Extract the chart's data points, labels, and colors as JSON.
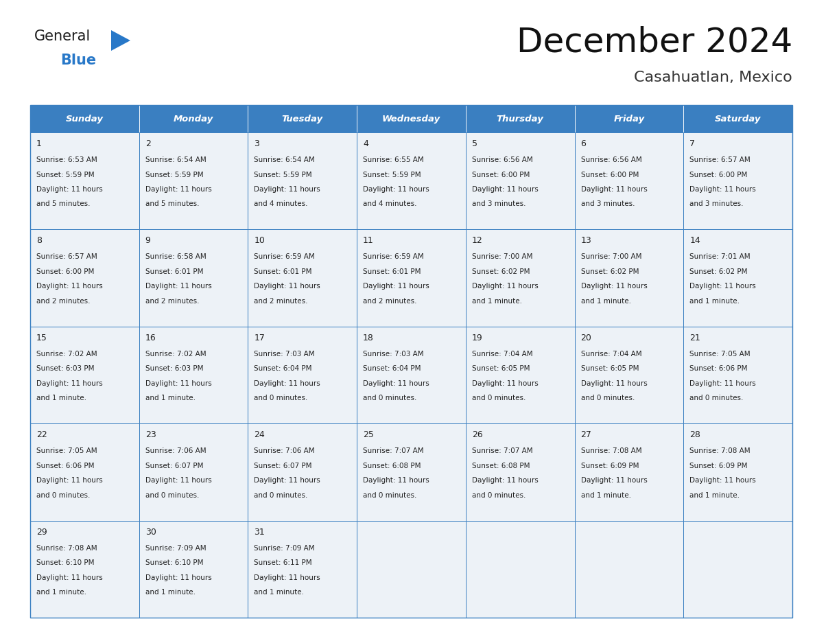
{
  "title": "December 2024",
  "subtitle": "Casahuatlan, Mexico",
  "header_bg_color": "#3a7fc1",
  "header_text_color": "#ffffff",
  "cell_bg_color": "#edf2f7",
  "border_color": "#3a7fc1",
  "text_color": "#222222",
  "days_of_week": [
    "Sunday",
    "Monday",
    "Tuesday",
    "Wednesday",
    "Thursday",
    "Friday",
    "Saturday"
  ],
  "calendar_data": [
    [
      {
        "day": "1",
        "sunrise": "6:53 AM",
        "sunset": "5:59 PM",
        "dl1": "Daylight: 11 hours",
        "dl2": "and 5 minutes."
      },
      {
        "day": "2",
        "sunrise": "6:54 AM",
        "sunset": "5:59 PM",
        "dl1": "Daylight: 11 hours",
        "dl2": "and 5 minutes."
      },
      {
        "day": "3",
        "sunrise": "6:54 AM",
        "sunset": "5:59 PM",
        "dl1": "Daylight: 11 hours",
        "dl2": "and 4 minutes."
      },
      {
        "day": "4",
        "sunrise": "6:55 AM",
        "sunset": "5:59 PM",
        "dl1": "Daylight: 11 hours",
        "dl2": "and 4 minutes."
      },
      {
        "day": "5",
        "sunrise": "6:56 AM",
        "sunset": "6:00 PM",
        "dl1": "Daylight: 11 hours",
        "dl2": "and 3 minutes."
      },
      {
        "day": "6",
        "sunrise": "6:56 AM",
        "sunset": "6:00 PM",
        "dl1": "Daylight: 11 hours",
        "dl2": "and 3 minutes."
      },
      {
        "day": "7",
        "sunrise": "6:57 AM",
        "sunset": "6:00 PM",
        "dl1": "Daylight: 11 hours",
        "dl2": "and 3 minutes."
      }
    ],
    [
      {
        "day": "8",
        "sunrise": "6:57 AM",
        "sunset": "6:00 PM",
        "dl1": "Daylight: 11 hours",
        "dl2": "and 2 minutes."
      },
      {
        "day": "9",
        "sunrise": "6:58 AM",
        "sunset": "6:01 PM",
        "dl1": "Daylight: 11 hours",
        "dl2": "and 2 minutes."
      },
      {
        "day": "10",
        "sunrise": "6:59 AM",
        "sunset": "6:01 PM",
        "dl1": "Daylight: 11 hours",
        "dl2": "and 2 minutes."
      },
      {
        "day": "11",
        "sunrise": "6:59 AM",
        "sunset": "6:01 PM",
        "dl1": "Daylight: 11 hours",
        "dl2": "and 2 minutes."
      },
      {
        "day": "12",
        "sunrise": "7:00 AM",
        "sunset": "6:02 PM",
        "dl1": "Daylight: 11 hours",
        "dl2": "and 1 minute."
      },
      {
        "day": "13",
        "sunrise": "7:00 AM",
        "sunset": "6:02 PM",
        "dl1": "Daylight: 11 hours",
        "dl2": "and 1 minute."
      },
      {
        "day": "14",
        "sunrise": "7:01 AM",
        "sunset": "6:02 PM",
        "dl1": "Daylight: 11 hours",
        "dl2": "and 1 minute."
      }
    ],
    [
      {
        "day": "15",
        "sunrise": "7:02 AM",
        "sunset": "6:03 PM",
        "dl1": "Daylight: 11 hours",
        "dl2": "and 1 minute."
      },
      {
        "day": "16",
        "sunrise": "7:02 AM",
        "sunset": "6:03 PM",
        "dl1": "Daylight: 11 hours",
        "dl2": "and 1 minute."
      },
      {
        "day": "17",
        "sunrise": "7:03 AM",
        "sunset": "6:04 PM",
        "dl1": "Daylight: 11 hours",
        "dl2": "and 0 minutes."
      },
      {
        "day": "18",
        "sunrise": "7:03 AM",
        "sunset": "6:04 PM",
        "dl1": "Daylight: 11 hours",
        "dl2": "and 0 minutes."
      },
      {
        "day": "19",
        "sunrise": "7:04 AM",
        "sunset": "6:05 PM",
        "dl1": "Daylight: 11 hours",
        "dl2": "and 0 minutes."
      },
      {
        "day": "20",
        "sunrise": "7:04 AM",
        "sunset": "6:05 PM",
        "dl1": "Daylight: 11 hours",
        "dl2": "and 0 minutes."
      },
      {
        "day": "21",
        "sunrise": "7:05 AM",
        "sunset": "6:06 PM",
        "dl1": "Daylight: 11 hours",
        "dl2": "and 0 minutes."
      }
    ],
    [
      {
        "day": "22",
        "sunrise": "7:05 AM",
        "sunset": "6:06 PM",
        "dl1": "Daylight: 11 hours",
        "dl2": "and 0 minutes."
      },
      {
        "day": "23",
        "sunrise": "7:06 AM",
        "sunset": "6:07 PM",
        "dl1": "Daylight: 11 hours",
        "dl2": "and 0 minutes."
      },
      {
        "day": "24",
        "sunrise": "7:06 AM",
        "sunset": "6:07 PM",
        "dl1": "Daylight: 11 hours",
        "dl2": "and 0 minutes."
      },
      {
        "day": "25",
        "sunrise": "7:07 AM",
        "sunset": "6:08 PM",
        "dl1": "Daylight: 11 hours",
        "dl2": "and 0 minutes."
      },
      {
        "day": "26",
        "sunrise": "7:07 AM",
        "sunset": "6:08 PM",
        "dl1": "Daylight: 11 hours",
        "dl2": "and 0 minutes."
      },
      {
        "day": "27",
        "sunrise": "7:08 AM",
        "sunset": "6:09 PM",
        "dl1": "Daylight: 11 hours",
        "dl2": "and 1 minute."
      },
      {
        "day": "28",
        "sunrise": "7:08 AM",
        "sunset": "6:09 PM",
        "dl1": "Daylight: 11 hours",
        "dl2": "and 1 minute."
      }
    ],
    [
      {
        "day": "29",
        "sunrise": "7:08 AM",
        "sunset": "6:10 PM",
        "dl1": "Daylight: 11 hours",
        "dl2": "and 1 minute."
      },
      {
        "day": "30",
        "sunrise": "7:09 AM",
        "sunset": "6:10 PM",
        "dl1": "Daylight: 11 hours",
        "dl2": "and 1 minute."
      },
      {
        "day": "31",
        "sunrise": "7:09 AM",
        "sunset": "6:11 PM",
        "dl1": "Daylight: 11 hours",
        "dl2": "and 1 minute."
      },
      null,
      null,
      null,
      null
    ]
  ],
  "logo_general_color": "#1a1a1a",
  "logo_blue_color": "#2878c8",
  "logo_triangle_color": "#2878c8"
}
